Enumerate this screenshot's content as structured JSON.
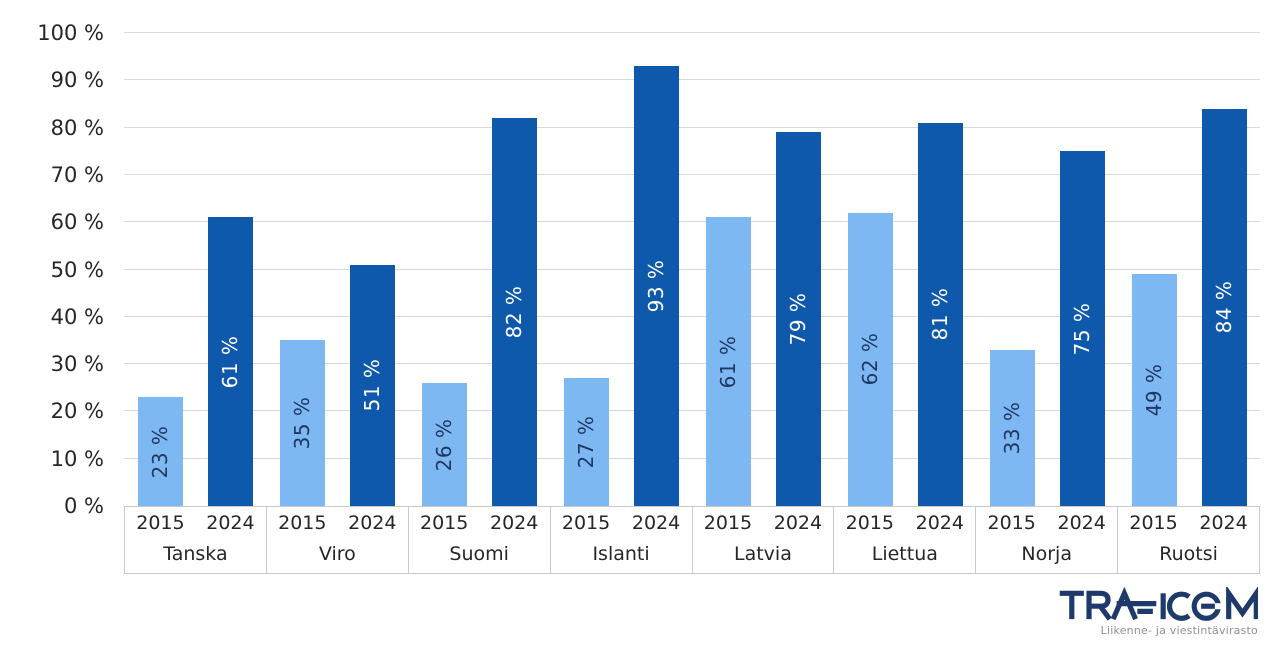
{
  "page": {
    "background": "#FFFFFF"
  },
  "chart_data": {
    "type": "bar",
    "title": "",
    "categories": [
      "Tanska",
      "Viro",
      "Suomi",
      "Islanti",
      "Latvia",
      "Liettua",
      "Norja",
      "Ruotsi"
    ],
    "series": [
      {
        "name": "2015",
        "color": "#7EB8F2",
        "label_color": "#1F3864",
        "values": [
          23,
          35,
          26,
          27,
          61,
          62,
          33,
          49
        ]
      },
      {
        "name": "2024",
        "color": "#0E59AC",
        "label_color": "#FFFFFF",
        "values": [
          61,
          51,
          82,
          93,
          79,
          81,
          75,
          84
        ]
      }
    ],
    "value_label_format": "{v} %",
    "y_axis": {
      "min": 0,
      "max": 100,
      "step": 10,
      "tick_format": "{v} %"
    },
    "grid": true,
    "gridline_color": "#D9D9D9",
    "axis_line_color": "#C9C9C9",
    "axis_text_color": "#262626",
    "legend_position": "none",
    "value_labels_rotated_degrees": -90
  },
  "logo": {
    "brand": "TRAFICOM",
    "tagline": "Liikenne- ja viestintävirasto",
    "color": "#1E3A6B",
    "tagline_color": "#8E9096"
  }
}
